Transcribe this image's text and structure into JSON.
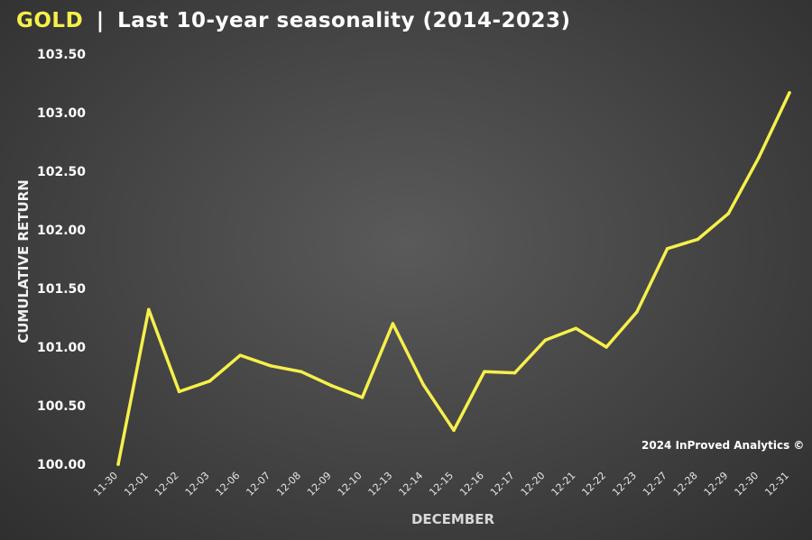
{
  "title": {
    "brand": "GOLD",
    "separator": "|",
    "text": "Last 10-year seasonality (2014-2023)"
  },
  "copyright": "2024 InProved Analytics ©",
  "colors": {
    "line": "#f6f04a",
    "brand": "#f6f04a",
    "text": "#ffffff"
  },
  "chart_data": {
    "type": "line",
    "xlabel": "DECEMBER",
    "ylabel": "CUMULATIVE RETURN",
    "ylim": [
      100.0,
      103.5
    ],
    "yticks": [
      "100.00",
      "100.50",
      "101.00",
      "101.50",
      "102.00",
      "102.50",
      "103.00",
      "103.50"
    ],
    "grid": false,
    "categories": [
      "11-30",
      "12-01",
      "12-02",
      "12-03",
      "12-06",
      "12-07",
      "12-08",
      "12-09",
      "12-10",
      "12-13",
      "12-14",
      "12-15",
      "12-16",
      "12-17",
      "12-20",
      "12-21",
      "12-22",
      "12-23",
      "12-27",
      "12-28",
      "12-29",
      "12-30",
      "12-31"
    ],
    "series": [
      {
        "values": [
          100.0,
          101.32,
          100.62,
          100.71,
          100.93,
          100.84,
          100.79,
          100.67,
          100.57,
          101.2,
          100.68,
          100.29,
          100.79,
          100.78,
          101.06,
          101.16,
          101.0,
          101.3,
          101.84,
          101.92,
          102.14,
          102.62,
          103.17
        ]
      }
    ]
  }
}
